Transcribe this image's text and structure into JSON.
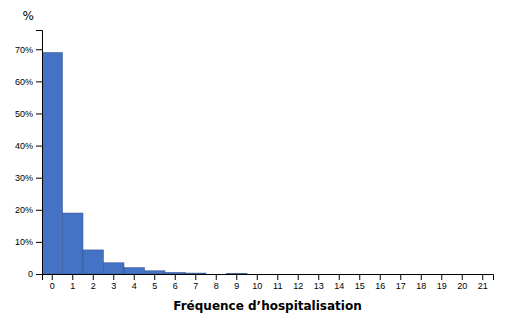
{
  "chart_data": {
    "type": "bar",
    "categories": [
      0,
      1,
      2,
      3,
      4,
      5,
      6,
      7,
      8,
      9,
      10,
      11,
      12,
      13,
      14,
      15,
      16,
      17,
      18,
      19,
      20,
      21
    ],
    "values": [
      69,
      19,
      7.5,
      3.5,
      2.0,
      1.0,
      0.5,
      0.3,
      0.0,
      0.2,
      0.0,
      0.0,
      0.0,
      0.0,
      0.0,
      0.0,
      0.0,
      0.0,
      0.0,
      0.0,
      0.0,
      0.0
    ],
    "color": "#4472C4",
    "xlabel": "Fréquence d’hospitalisation",
    "ylabel": "%",
    "ylim": [
      0,
      76
    ],
    "yticks": [
      0,
      {
        "value": 10,
        "label": "10%"
      },
      {
        "value": 20,
        "label": "20%"
      },
      {
        "value": 30,
        "label": "30%"
      },
      {
        "value": 40,
        "label": "40%"
      },
      {
        "value": 50,
        "label": "50%"
      },
      {
        "value": 60,
        "label": "60%"
      },
      {
        "value": 70,
        "label": "70%"
      }
    ],
    "grid": false
  }
}
